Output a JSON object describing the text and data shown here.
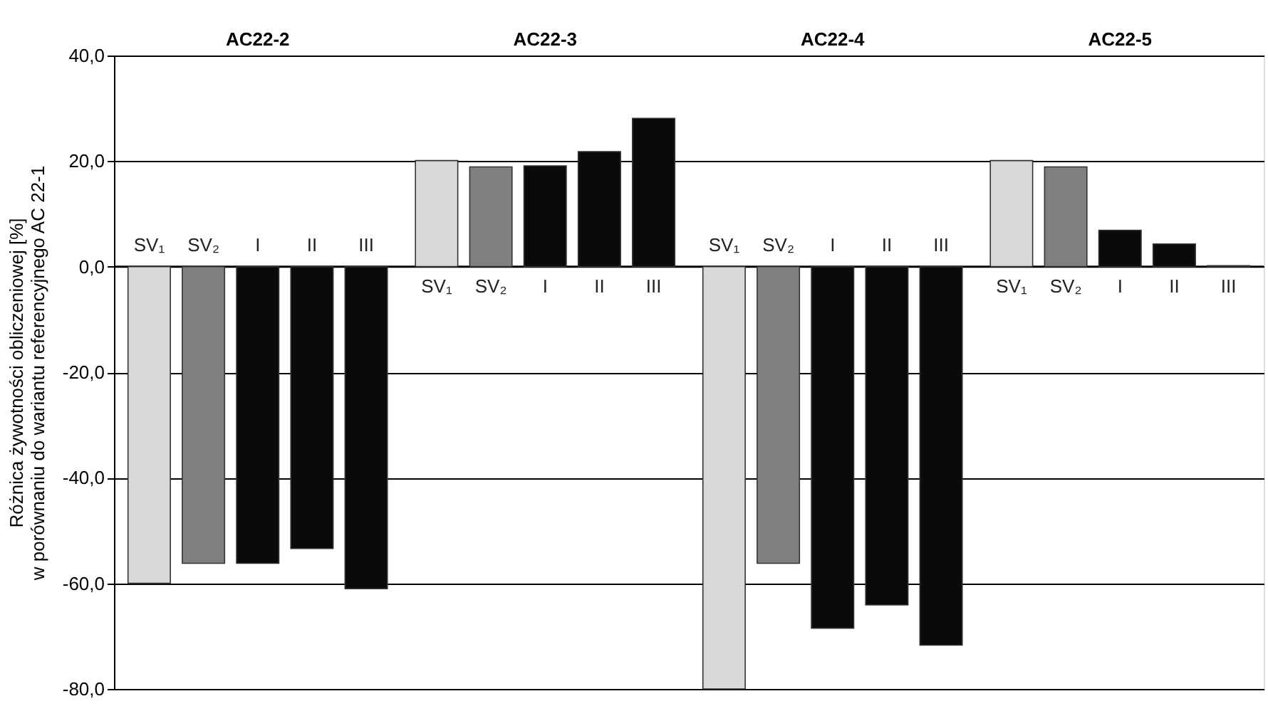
{
  "chart_data": {
    "type": "bar",
    "ylabel": "Różnica żywotności obliczeniowej [%]\nw porównaniu do wariantu referencyjnego AC 22-1",
    "categories": [
      "AC22-2",
      "AC22-3",
      "AC22-4",
      "AC22-5"
    ],
    "series": [
      {
        "name": "SV₁",
        "color": "#d9d9d9",
        "values": [
          -60,
          20.1,
          -80,
          20.1
        ]
      },
      {
        "name": "SV₂",
        "color": "#808080",
        "values": [
          -56.2,
          18.9,
          -56.2,
          18.9
        ]
      },
      {
        "name": "I",
        "color": "#0a0a0a",
        "values": [
          -56.2,
          19.1,
          -68.5,
          6.9
        ]
      },
      {
        "name": "II",
        "color": "#0a0a0a",
        "values": [
          -53.4,
          21.8,
          -64.1,
          4.3
        ]
      },
      {
        "name": "III",
        "color": "#0a0a0a",
        "values": [
          -61,
          28.1,
          -71.7,
          0.2
        ]
      }
    ],
    "ylim": [
      -80,
      40
    ],
    "yticks": [
      {
        "value": -80,
        "label": "-80,0"
      },
      {
        "value": -60,
        "label": "-60,0"
      },
      {
        "value": -40,
        "label": "-40,0"
      },
      {
        "value": -20,
        "label": "-20,0"
      },
      {
        "value": 0,
        "label": "0,0"
      },
      {
        "value": 20,
        "label": "20,0"
      },
      {
        "value": 40,
        "label": "40,0"
      }
    ],
    "grid": "y",
    "legend": false
  }
}
